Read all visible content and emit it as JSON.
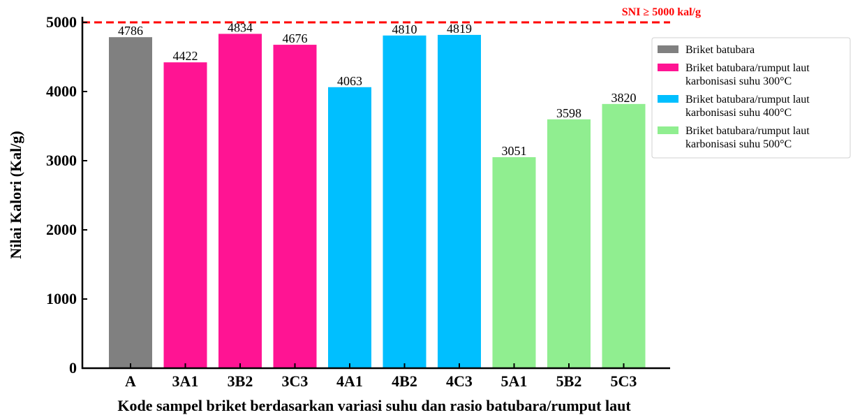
{
  "chart_data": {
    "type": "bar",
    "title": "",
    "xlabel": "Kode sampel briket berdasarkan variasi suhu dan rasio batubara/rumput laut",
    "ylabel": "Nilai Kalori (Kal/g)",
    "ylim": [
      0,
      5000
    ],
    "yticks": [
      0,
      1000,
      2000,
      3000,
      4000,
      5000
    ],
    "grid": false,
    "legend_position": "top-right",
    "categories": [
      "A",
      "3A1",
      "3B2",
      "3C3",
      "4A1",
      "4B2",
      "4C3",
      "5A1",
      "5B2",
      "5C3"
    ],
    "values": [
      4786,
      4422,
      4834,
      4676,
      4063,
      4810,
      4819,
      3051,
      3598,
      3820
    ],
    "bar_series_index": [
      0,
      1,
      1,
      1,
      2,
      2,
      2,
      3,
      3,
      3
    ],
    "series": [
      {
        "name": "Briket batubara",
        "color": "#808080"
      },
      {
        "name": "Briket batubara/rumput laut karbonisasi suhu 300°C",
        "lines": [
          "Briket batubara/rumput laut",
          "karbonisasi suhu 300°C"
        ],
        "color": "#ff1493"
      },
      {
        "name": "Briket batubara/rumput laut karbonisasi suhu 400°C",
        "lines": [
          "Briket batubara/rumput laut",
          "karbonisasi suhu 400°C"
        ],
        "color": "#00bfff"
      },
      {
        "name": "Briket batubara/rumput laut karbonisasi suhu 500°C",
        "lines": [
          "Briket batubara/rumput laut",
          "karbonisasi suhu 500°C"
        ],
        "color": "#90ee90"
      }
    ],
    "reference_line": {
      "value": 5000,
      "label": "SNI ≥ 5000 kal/g",
      "color": "#ff0000",
      "style": "dashed"
    }
  }
}
